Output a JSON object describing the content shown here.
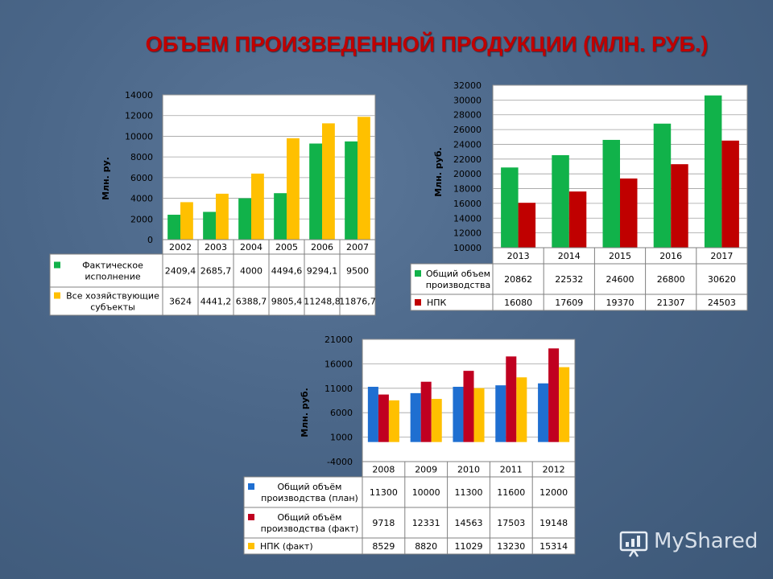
{
  "page": {
    "title": "ОБЪЕМ ПРОИЗВЕДЕННОЙ ПРОДУКЦИИ (МЛН. РУБ.)",
    "watermark": "MyShared"
  },
  "chart_data": [
    {
      "type": "bar",
      "categories": [
        "2002",
        "2003",
        "2004",
        "2005",
        "2006",
        "2007"
      ],
      "series": [
        {
          "name": "Фактическое исполнение",
          "values": [
            2409.4,
            2685.7,
            4000,
            4494.6,
            9294.1,
            9500
          ],
          "labels": [
            "2409,4",
            "2685,7",
            "4000",
            "4494,6",
            "9294,1",
            "9500"
          ],
          "color": "#11b24a"
        },
        {
          "name": "Все хозяйствующие субъекты",
          "values": [
            3624,
            4441.2,
            6388.7,
            9805.4,
            11248.8,
            11876.7
          ],
          "labels": [
            "3624",
            "4441,2",
            "6388,7",
            "9805,4",
            "11248,8",
            "11876,7"
          ],
          "color": "#ffc000"
        }
      ],
      "ylabel": "Млн. ру.",
      "ylim": [
        0,
        14000
      ],
      "yticks": [
        0,
        2000,
        4000,
        6000,
        8000,
        10000,
        12000,
        14000
      ],
      "grid": true,
      "legend": "table"
    },
    {
      "type": "bar",
      "categories": [
        "2013",
        "2014",
        "2015",
        "2016",
        "2017"
      ],
      "series": [
        {
          "name": "Общий объем производства",
          "values": [
            20862,
            22532,
            24600,
            26800,
            30620
          ],
          "labels": [
            "20862",
            "22532",
            "24600",
            "26800",
            "30620"
          ],
          "color": "#11b24a"
        },
        {
          "name": "НПК",
          "values": [
            16080,
            17609,
            19370,
            21307,
            24503
          ],
          "labels": [
            "16080",
            "17609",
            "19370",
            "21307",
            "24503"
          ],
          "color": "#c00000"
        }
      ],
      "ylabel": "Млн. руб.",
      "ylim": [
        10000,
        32000
      ],
      "yticks": [
        10000,
        12000,
        14000,
        16000,
        18000,
        20000,
        22000,
        24000,
        26000,
        28000,
        30000,
        32000
      ],
      "grid": true,
      "legend": "table"
    },
    {
      "type": "bar",
      "categories": [
        "2008",
        "2009",
        "2010",
        "2011",
        "2012"
      ],
      "series": [
        {
          "name": "Общий объём производства (план)",
          "values": [
            11300,
            10000,
            11300,
            11600,
            12000
          ],
          "labels": [
            "11300",
            "10000",
            "11300",
            "11600",
            "12000"
          ],
          "color": "#1f6fd1"
        },
        {
          "name": "Общий объём производства (факт)",
          "values": [
            9718,
            12331,
            14563,
            17503,
            19148
          ],
          "labels": [
            "9718",
            "12331",
            "14563",
            "17503",
            "19148"
          ],
          "color": "#c00020"
        },
        {
          "name": "НПК (факт)",
          "values": [
            8529,
            8820,
            11029,
            13230,
            15314
          ],
          "labels": [
            "8529",
            "8820",
            "11029",
            "13230",
            "15314"
          ],
          "color": "#ffc000"
        }
      ],
      "ylabel": "Млн. руб.",
      "ylim": [
        -4000,
        21000
      ],
      "yticks": [
        -4000,
        1000,
        6000,
        11000,
        16000,
        21000
      ],
      "grid": true,
      "legend": "table"
    }
  ]
}
